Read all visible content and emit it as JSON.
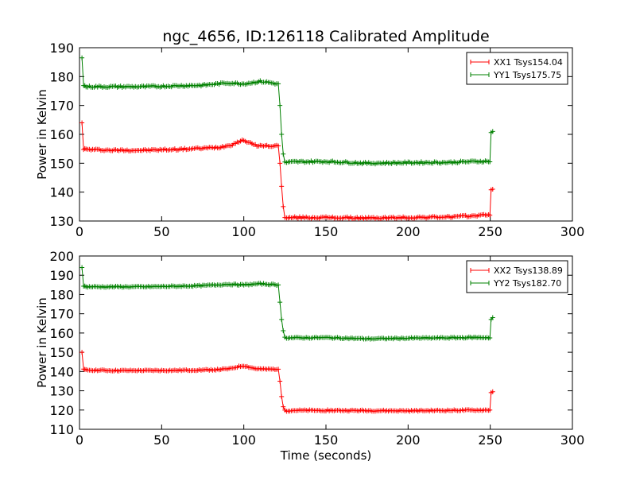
{
  "chart_data": [
    {
      "type": "line",
      "title": "ngc_4656, ID:126118 Calibrated Amplitude",
      "xlabel": "",
      "ylabel": "Power in Kelvin",
      "xlim": [
        0,
        300
      ],
      "ylim": [
        130,
        190
      ],
      "xticks": [
        "0",
        "50",
        "100",
        "150",
        "200",
        "250",
        "300"
      ],
      "yticks": [
        "130",
        "140",
        "150",
        "160",
        "170",
        "180",
        "190"
      ],
      "legend_position": "top-right",
      "grid": false,
      "series": [
        {
          "name": "XX1 Tsys154.04",
          "color": "#ff0000",
          "x": [
            1.5,
            2.5,
            4,
            20,
            40,
            60,
            75,
            85,
            92,
            97,
            100,
            103,
            107,
            112,
            117,
            121,
            122,
            123,
            124,
            125,
            126,
            130,
            150,
            175,
            200,
            225,
            240,
            249,
            249.8,
            250.5,
            251.5
          ],
          "y": [
            164,
            155,
            154.8,
            154.5,
            154.5,
            154.8,
            155.2,
            155.5,
            156.3,
            157.5,
            158,
            157.2,
            156.2,
            156,
            156,
            156,
            150,
            142,
            135,
            131.5,
            131,
            131.2,
            131.2,
            131,
            131.2,
            131.4,
            131.8,
            132.2,
            132,
            141,
            141
          ]
        },
        {
          "name": "YY1 Tsys175.75",
          "color": "#008000",
          "x": [
            1.5,
            2.5,
            4,
            20,
            40,
            60,
            75,
            90,
            100,
            110,
            115,
            120,
            121,
            122,
            123,
            124,
            125,
            126,
            130,
            150,
            175,
            200,
            225,
            240,
            249,
            249.8,
            250.5,
            251.5
          ],
          "y": [
            186.5,
            177,
            176.5,
            176.5,
            176.5,
            176.8,
            177,
            177.8,
            177.5,
            178.3,
            178,
            177.5,
            177.5,
            170,
            160,
            153,
            150.5,
            150.2,
            150.5,
            150.6,
            150,
            150.2,
            150.3,
            150.6,
            150.7,
            150.5,
            160.5,
            161
          ]
        }
      ]
    },
    {
      "type": "line",
      "title": "",
      "xlabel": "Time (seconds)",
      "ylabel": "Power in Kelvin",
      "xlim": [
        0,
        300
      ],
      "ylim": [
        110,
        200
      ],
      "xticks": [
        "0",
        "50",
        "100",
        "150",
        "200",
        "250",
        "300"
      ],
      "yticks": [
        "110",
        "120",
        "130",
        "140",
        "150",
        "160",
        "170",
        "180",
        "190",
        "200"
      ],
      "legend_position": "top-right",
      "grid": false,
      "series": [
        {
          "name": "XX2 Tsys138.89",
          "color": "#ff0000",
          "x": [
            1.5,
            2.5,
            4,
            20,
            40,
            60,
            75,
            85,
            92,
            97,
            100,
            103,
            107,
            112,
            117,
            121,
            122,
            123,
            124,
            125,
            126,
            130,
            150,
            175,
            200,
            225,
            240,
            249,
            249.8,
            250.5,
            251.5
          ],
          "y": [
            150,
            141,
            140.8,
            140.5,
            140.5,
            140.6,
            140.8,
            141,
            141.5,
            142.6,
            143,
            142.3,
            141.5,
            141.2,
            141.2,
            141.2,
            135,
            127,
            122,
            120,
            119.6,
            119.8,
            119.8,
            119.7,
            119.6,
            119.8,
            119.9,
            120,
            120,
            129,
            129.5
          ]
        },
        {
          "name": "YY2 Tsys182.70",
          "color": "#008000",
          "x": [
            1.5,
            2.5,
            4,
            20,
            40,
            60,
            75,
            90,
            100,
            110,
            115,
            120,
            121,
            122,
            123,
            124,
            125,
            126,
            130,
            150,
            175,
            200,
            225,
            240,
            249,
            249.8,
            250.5,
            251.5
          ],
          "y": [
            194,
            184.5,
            184,
            184,
            184,
            184.3,
            184.6,
            185.3,
            185,
            185.6,
            185.3,
            185,
            185,
            176,
            167,
            161,
            158,
            157.5,
            157.5,
            157.6,
            157,
            157.3,
            157.5,
            157.7,
            157.6,
            157.5,
            167,
            168
          ]
        }
      ]
    }
  ]
}
